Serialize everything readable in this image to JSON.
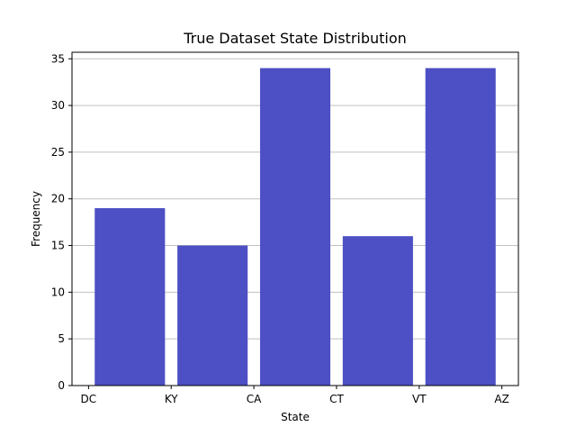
{
  "chart_data": {
    "type": "bar",
    "title": "True Dataset State Distribution",
    "xlabel": "State",
    "ylabel": "Frequency",
    "x_tick_labels": [
      "DC",
      "KY",
      "CA",
      "CT",
      "VT",
      "AZ"
    ],
    "bins": [
      {
        "range": [
          "DC",
          "KY"
        ],
        "value": 19
      },
      {
        "range": [
          "KY",
          "CA"
        ],
        "value": 15
      },
      {
        "range": [
          "CA",
          "CT"
        ],
        "value": 34
      },
      {
        "range": [
          "CT",
          "VT"
        ],
        "value": 16
      },
      {
        "range": [
          "VT",
          "AZ"
        ],
        "value": 34
      }
    ],
    "values": [
      19,
      15,
      34,
      16,
      34
    ],
    "ylim": [
      0,
      35.7
    ],
    "y_ticks": [
      0,
      5,
      10,
      15,
      20,
      25,
      30,
      35
    ],
    "grid": {
      "y": true,
      "x": false
    },
    "bar_color": "#4d4fc4",
    "grid_color": "#c0c0c0"
  }
}
